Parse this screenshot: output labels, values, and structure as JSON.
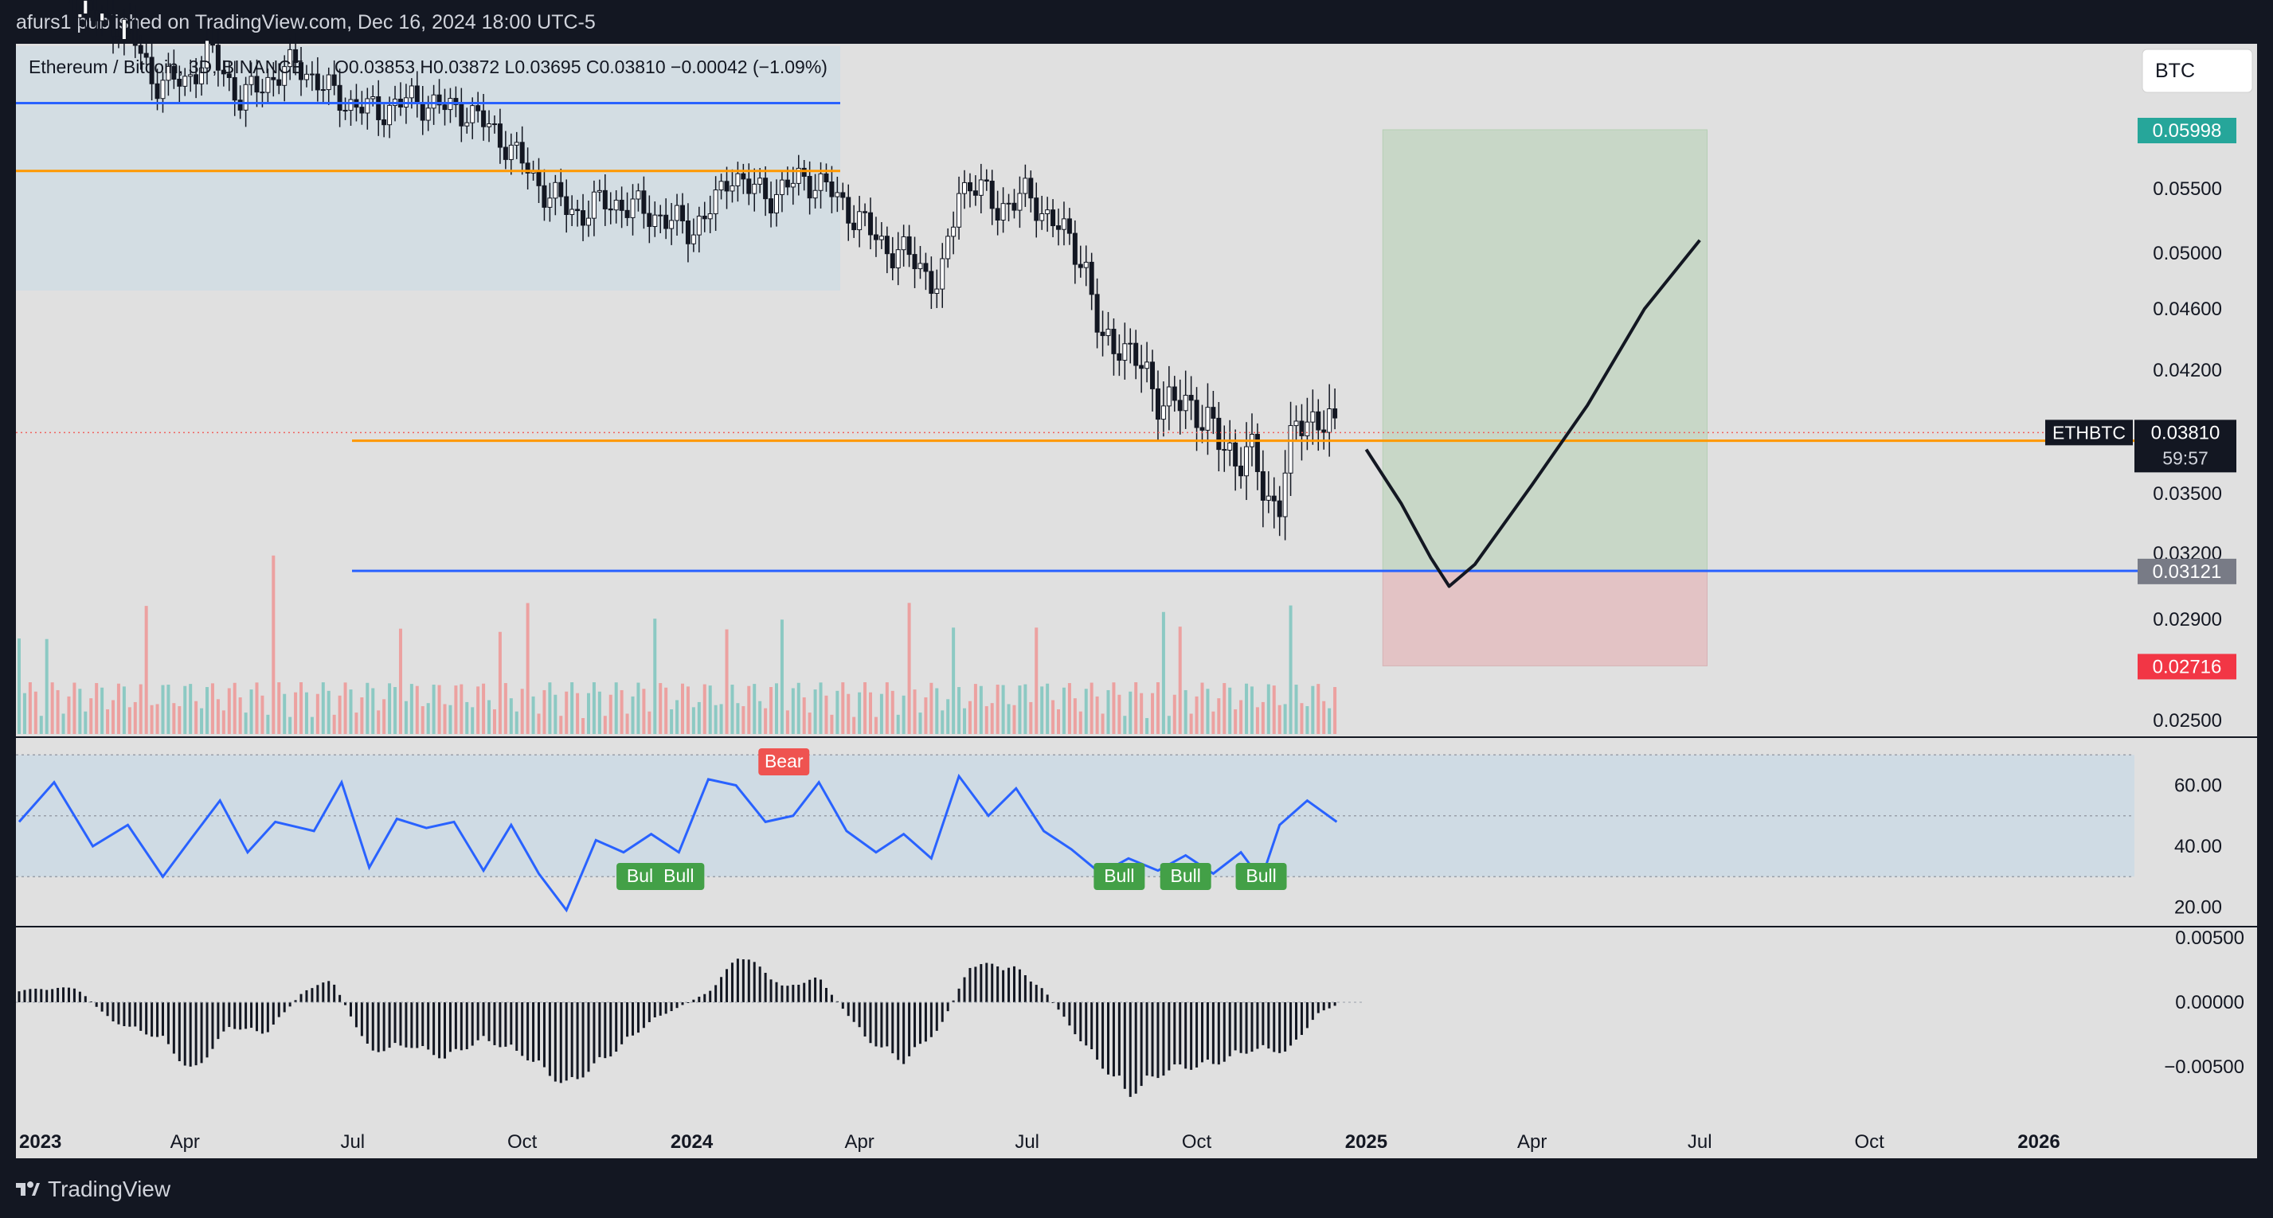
{
  "header": {
    "publisher_line": "afurs1 published on TradingView.com, Dec 16, 2024 18:00 UTC-5"
  },
  "legend": {
    "symbol_line": "Ethereum / Bitcoin, 3D, BINANCE",
    "ohlc_line": "O0.03853  H0.03872  L0.03695  C0.03810  −0.00042 (−1.09%)"
  },
  "currency_button": {
    "label": "BTC"
  },
  "footer": {
    "brand": "TradingView"
  },
  "colors": {
    "background": "#131722",
    "pane": "#e0e0e0",
    "up": "#26a69a",
    "down": "#ef5350",
    "orange": "#ff9800",
    "blue": "#2962ff",
    "rsi_line": "#2962ff",
    "profit_zone": "#c8d7c7",
    "loss_zone": "#e3c3c5",
    "box_zone": "#d3dde3"
  },
  "chart_data": [
    {
      "type": "line",
      "name": "price-pane",
      "title": "Ethereum / Bitcoin, 3D, BINANCE",
      "x_tick_labels": [
        "2023",
        "Apr",
        "Jul",
        "Oct",
        "2024",
        "Apr",
        "Jul",
        "Oct",
        "2025",
        "Apr",
        "Jul",
        "Oct",
        "2026"
      ],
      "y_tick_labels": [
        "0.05500",
        "0.05000",
        "0.04600",
        "0.04200",
        "0.03500",
        "0.03200",
        "0.02900",
        "0.02500"
      ],
      "y_ticks": [
        0.055,
        0.05,
        0.046,
        0.042,
        0.035,
        0.032,
        0.029,
        0.025
      ],
      "price_labels": [
        {
          "text": "0.05998",
          "value": 0.05998,
          "color": "#26a69a"
        },
        {
          "text": "0.03121",
          "value": 0.03121,
          "color": "#787b86"
        },
        {
          "text": "0.02716",
          "value": 0.02716,
          "color": "#f23645"
        }
      ],
      "last_price": {
        "symbol": "ETHBTC",
        "value": "0.03810",
        "countdown": "59:57"
      },
      "horizontal_lines": [
        {
          "color": "orange",
          "value": 0.0565
        },
        {
          "color": "blue",
          "value": 0.0622
        },
        {
          "color": "orange",
          "value": 0.038
        },
        {
          "color": "blue",
          "value": 0.0312
        }
      ],
      "close_series": {
        "name": "ETHBTC",
        "points": [
          [
            "2023-01-01",
            0.0733
          ],
          [
            "2023-01-15",
            0.0745
          ],
          [
            "2023-02-01",
            0.0705
          ],
          [
            "2023-02-15",
            0.069
          ],
          [
            "2023-03-01",
            0.0685
          ],
          [
            "2023-03-15",
            0.064
          ],
          [
            "2023-04-01",
            0.064
          ],
          [
            "2023-04-15",
            0.0665
          ],
          [
            "2023-05-01",
            0.0625
          ],
          [
            "2023-05-15",
            0.064
          ],
          [
            "2023-06-01",
            0.0655
          ],
          [
            "2023-06-15",
            0.0635
          ],
          [
            "2023-07-01",
            0.062
          ],
          [
            "2023-07-15",
            0.0615
          ],
          [
            "2023-08-01",
            0.0625
          ],
          [
            "2023-08-15",
            0.062
          ],
          [
            "2023-09-01",
            0.0615
          ],
          [
            "2023-09-15",
            0.06
          ],
          [
            "2023-10-01",
            0.0572
          ],
          [
            "2023-10-15",
            0.0545
          ],
          [
            "2023-11-01",
            0.053
          ],
          [
            "2023-11-15",
            0.054
          ],
          [
            "2023-12-01",
            0.0535
          ],
          [
            "2023-12-15",
            0.0528
          ],
          [
            "2024-01-01",
            0.0518
          ],
          [
            "2024-01-15",
            0.054
          ],
          [
            "2024-01-22",
            0.0565
          ],
          [
            "2024-02-01",
            0.055
          ],
          [
            "2024-02-15",
            0.0545
          ],
          [
            "2024-03-01",
            0.056
          ],
          [
            "2024-03-15",
            0.055
          ],
          [
            "2024-04-01",
            0.0525
          ],
          [
            "2024-04-15",
            0.0505
          ],
          [
            "2024-05-01",
            0.0495
          ],
          [
            "2024-05-15",
            0.0475
          ],
          [
            "2024-05-25",
            0.055
          ],
          [
            "2024-06-01",
            0.0555
          ],
          [
            "2024-06-15",
            0.0535
          ],
          [
            "2024-07-01",
            0.0545
          ],
          [
            "2024-07-15",
            0.0525
          ],
          [
            "2024-08-01",
            0.0495
          ],
          [
            "2024-08-10",
            0.0435
          ],
          [
            "2024-08-20",
            0.044
          ],
          [
            "2024-09-01",
            0.042
          ],
          [
            "2024-09-15",
            0.04
          ],
          [
            "2024-10-01",
            0.04
          ],
          [
            "2024-10-15",
            0.0375
          ],
          [
            "2024-11-01",
            0.037
          ],
          [
            "2024-11-08",
            0.0345
          ],
          [
            "2024-11-15",
            0.035
          ],
          [
            "2024-11-25",
            0.039
          ],
          [
            "2024-12-05",
            0.0395
          ],
          [
            "2024-12-16",
            0.0381
          ]
        ]
      },
      "projection_path": {
        "points": [
          [
            "2025-01-01",
            0.0375
          ],
          [
            "2025-01-20",
            0.0345
          ],
          [
            "2025-02-05",
            0.0318
          ],
          [
            "2025-02-15",
            0.0305
          ],
          [
            "2025-03-01",
            0.0315
          ],
          [
            "2025-04-01",
            0.0355
          ],
          [
            "2025-05-01",
            0.04
          ],
          [
            "2025-06-01",
            0.046
          ],
          [
            "2025-07-01",
            0.051
          ]
        ]
      },
      "position_tool": {
        "entry": 0.03121,
        "target": 0.05998,
        "stop": 0.02716,
        "from": "2025-01-10",
        "to": "2025-07-05"
      }
    },
    {
      "type": "line",
      "name": "rsi-pane",
      "y_tick_labels": [
        "60.00",
        "40.00",
        "20.00"
      ],
      "y_ticks": [
        60,
        40,
        20
      ],
      "band": [
        30,
        70
      ],
      "series": [
        {
          "name": "RSI",
          "points": [
            [
              "2023-01-01",
              48
            ],
            [
              "2023-01-20",
              61
            ],
            [
              "2023-02-10",
              40
            ],
            [
              "2023-03-01",
              47
            ],
            [
              "2023-03-20",
              30
            ],
            [
              "2023-04-05",
              43
            ],
            [
              "2023-04-20",
              55
            ],
            [
              "2023-05-05",
              38
            ],
            [
              "2023-05-20",
              48
            ],
            [
              "2023-06-10",
              45
            ],
            [
              "2023-06-25",
              61
            ],
            [
              "2023-07-10",
              33
            ],
            [
              "2023-07-25",
              49
            ],
            [
              "2023-08-10",
              46
            ],
            [
              "2023-08-25",
              48
            ],
            [
              "2023-09-10",
              32
            ],
            [
              "2023-09-25",
              47
            ],
            [
              "2023-10-10",
              31
            ],
            [
              "2023-10-25",
              19
            ],
            [
              "2023-11-10",
              42
            ],
            [
              "2023-11-25",
              38
            ],
            [
              "2023-12-10",
              44
            ],
            [
              "2023-12-25",
              38
            ],
            [
              "2024-01-10",
              62
            ],
            [
              "2024-01-25",
              60
            ],
            [
              "2024-02-10",
              48
            ],
            [
              "2024-02-25",
              50
            ],
            [
              "2024-03-10",
              61
            ],
            [
              "2024-03-25",
              45
            ],
            [
              "2024-04-10",
              38
            ],
            [
              "2024-04-25",
              44
            ],
            [
              "2024-05-10",
              36
            ],
            [
              "2024-05-25",
              63
            ],
            [
              "2024-06-10",
              50
            ],
            [
              "2024-06-25",
              59
            ],
            [
              "2024-07-10",
              45
            ],
            [
              "2024-07-25",
              39
            ],
            [
              "2024-08-10",
              31
            ],
            [
              "2024-08-25",
              36
            ],
            [
              "2024-09-10",
              32
            ],
            [
              "2024-09-25",
              37
            ],
            [
              "2024-10-10",
              31
            ],
            [
              "2024-10-25",
              38
            ],
            [
              "2024-11-05",
              29
            ],
            [
              "2024-11-15",
              47
            ],
            [
              "2024-11-30",
              55
            ],
            [
              "2024-12-16",
              48
            ]
          ]
        }
      ],
      "annotations": [
        {
          "text": "Bull",
          "at": "2023-12-05",
          "kind": "bull"
        },
        {
          "text": "Bull",
          "at": "2023-12-25",
          "kind": "bull"
        },
        {
          "text": "Bear",
          "at": "2024-02-20",
          "kind": "bear"
        },
        {
          "text": "Bull",
          "at": "2024-08-20",
          "kind": "bull"
        },
        {
          "text": "Bull",
          "at": "2024-09-25",
          "kind": "bull"
        },
        {
          "text": "Bull",
          "at": "2024-11-05",
          "kind": "bull"
        }
      ]
    },
    {
      "type": "bar",
      "name": "histogram-pane",
      "y_tick_labels": [
        "0.00500",
        "0.00000",
        "−0.00500"
      ],
      "y_ticks": [
        0.005,
        0.0,
        -0.005
      ],
      "series": [
        {
          "name": "histogram",
          "points": [
            [
              "2023-01-01",
              0.001
            ],
            [
              "2023-02-01",
              0.0012
            ],
            [
              "2023-02-20",
              -0.0015
            ],
            [
              "2023-03-20",
              -0.003
            ],
            [
              "2023-04-05",
              -0.0058
            ],
            [
              "2023-04-25",
              -0.002
            ],
            [
              "2023-05-15",
              -0.0025
            ],
            [
              "2023-06-05",
              0.001
            ],
            [
              "2023-06-20",
              0.0018
            ],
            [
              "2023-07-10",
              -0.004
            ],
            [
              "2023-08-01",
              -0.0035
            ],
            [
              "2023-08-20",
              -0.0045
            ],
            [
              "2023-09-10",
              -0.003
            ],
            [
              "2023-10-01",
              -0.0042
            ],
            [
              "2023-10-25",
              -0.0068
            ],
            [
              "2023-11-20",
              -0.004
            ],
            [
              "2023-12-10",
              -0.0015
            ],
            [
              "2024-01-10",
              0.0008
            ],
            [
              "2024-01-28",
              0.004
            ],
            [
              "2024-02-20",
              0.0012
            ],
            [
              "2024-03-10",
              0.002
            ],
            [
              "2024-04-05",
              -0.003
            ],
            [
              "2024-04-25",
              -0.0048
            ],
            [
              "2024-05-15",
              -0.002
            ],
            [
              "2024-06-01",
              0.0032
            ],
            [
              "2024-06-25",
              0.0028
            ],
            [
              "2024-07-10",
              0.001
            ],
            [
              "2024-08-01",
              -0.0035
            ],
            [
              "2024-08-25",
              -0.0075
            ],
            [
              "2024-09-15",
              -0.0055
            ],
            [
              "2024-10-10",
              -0.005
            ],
            [
              "2024-11-01",
              -0.0038
            ],
            [
              "2024-11-20",
              -0.004
            ],
            [
              "2024-12-05",
              -0.001
            ],
            [
              "2024-12-16",
              -0.0002
            ]
          ]
        }
      ]
    }
  ]
}
